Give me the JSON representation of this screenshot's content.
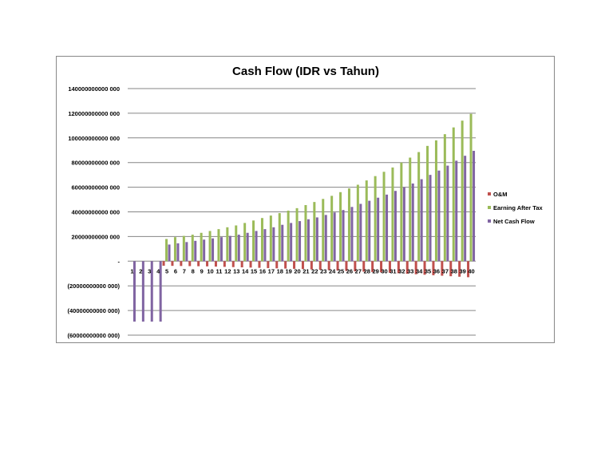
{
  "chart_data": {
    "type": "bar",
    "title": "Cash Flow (IDR vs Tahun)",
    "xlabel": "",
    "ylabel": "",
    "ylim": [
      -60000000000000,
      140000000000000
    ],
    "yticks": [
      140000000000000,
      120000000000000,
      100000000000000,
      80000000000000,
      60000000000000,
      40000000000000,
      20000000000000,
      0,
      -20000000000000,
      -40000000000000,
      -60000000000000
    ],
    "ytick_labels": [
      "140000000000 000",
      "120000000000 000",
      "100000000000 000",
      "80000000000 000",
      "60000000000 000",
      "40000000000 000",
      "20000000000 000",
      "-",
      "(20000000000 000)",
      "(40000000000 000)",
      "(60000000000 000)"
    ],
    "categories": [
      "1",
      "2",
      "3",
      "4",
      "5",
      "6",
      "7",
      "8",
      "9",
      "10",
      "11",
      "12",
      "13",
      "14",
      "15",
      "16",
      "17",
      "18",
      "19",
      "20",
      "21",
      "22",
      "23",
      "24",
      "25",
      "26",
      "27",
      "28",
      "29",
      "30",
      "31",
      "32",
      "33",
      "34",
      "35",
      "36",
      "37",
      "38",
      "39",
      "40"
    ],
    "grid": true,
    "legend_position": "right",
    "series": [
      {
        "name": "O&M",
        "color": "#c0504d",
        "values": [
          0,
          0,
          0,
          0,
          -3700000000000,
          -3800000000000,
          -3900000000000,
          -4000000000000,
          -4100000000000,
          -4200000000000,
          -4400000000000,
          -4600000000000,
          -4800000000000,
          -5000000000000,
          -5200000000000,
          -5400000000000,
          -5600000000000,
          -5800000000000,
          -6000000000000,
          -6200000000000,
          -6400000000000,
          -6700000000000,
          -7000000000000,
          -7300000000000,
          -7600000000000,
          -7900000000000,
          -8200000000000,
          -8500000000000,
          -8800000000000,
          -9100000000000,
          -9400000000000,
          -9800000000000,
          -10200000000000,
          -10600000000000,
          -11000000000000,
          -11400000000000,
          -11800000000000,
          -12200000000000,
          -12600000000000,
          -13000000000000
        ]
      },
      {
        "name": "Earning After Tax",
        "color": "#9bbb59",
        "values": [
          0,
          0,
          0,
          0,
          18000000000000,
          19500000000000,
          20500000000000,
          21500000000000,
          23000000000000,
          24500000000000,
          26000000000000,
          27500000000000,
          29000000000000,
          31000000000000,
          33000000000000,
          35000000000000,
          37000000000000,
          39000000000000,
          41000000000000,
          43000000000000,
          45500000000000,
          48000000000000,
          50500000000000,
          53000000000000,
          56000000000000,
          59000000000000,
          62000000000000,
          65500000000000,
          69000000000000,
          72500000000000,
          76000000000000,
          80000000000000,
          84000000000000,
          88500000000000,
          93500000000000,
          98000000000000,
          103000000000000,
          108500000000000,
          114000000000000,
          119500000000000
        ]
      },
      {
        "name": "Net Cash Flow",
        "color": "#8064a2",
        "values": [
          -49000000000000,
          -49000000000000,
          -49000000000000,
          -49000000000000,
          13500000000000,
          14500000000000,
          15500000000000,
          16500000000000,
          17500000000000,
          18500000000000,
          19500000000000,
          20500000000000,
          21500000000000,
          23000000000000,
          24500000000000,
          26000000000000,
          27500000000000,
          29500000000000,
          31000000000000,
          32500000000000,
          34000000000000,
          35500000000000,
          37500000000000,
          39500000000000,
          41500000000000,
          44000000000000,
          46500000000000,
          49000000000000,
          51500000000000,
          54000000000000,
          57000000000000,
          60000000000000,
          63000000000000,
          66500000000000,
          70000000000000,
          73500000000000,
          77500000000000,
          81500000000000,
          85500000000000,
          89500000000000
        ]
      }
    ]
  }
}
